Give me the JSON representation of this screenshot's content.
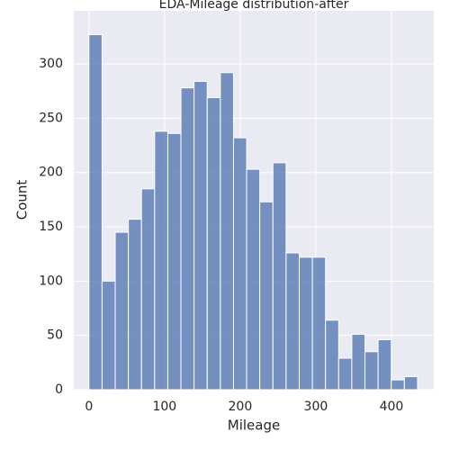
{
  "chart_data": {
    "type": "histogram",
    "title": "EDA-Mileage distribution-after",
    "x_label": "Mileage",
    "y_label": "Count",
    "bins": [
      0,
      17.38,
      34.76,
      52.14,
      69.52,
      86.9,
      104.28,
      121.66,
      139.04,
      156.42,
      173.8,
      191.18,
      208.56,
      225.94,
      243.32,
      260.7,
      278.08,
      295.46,
      312.84,
      330.22,
      347.6,
      364.98,
      382.36,
      399.74,
      417.12,
      434.5
    ],
    "values": [
      327,
      100,
      145,
      157,
      185,
      238,
      236,
      278,
      284,
      269,
      292,
      232,
      203,
      173,
      209,
      126,
      122,
      122,
      64,
      29,
      51,
      35,
      46,
      9,
      12
    ],
    "color": "#4c72b0",
    "xlim": [
      -20,
      456
    ],
    "ylim": [
      0,
      349
    ],
    "xticks": [
      0,
      100,
      200,
      300,
      400
    ],
    "yticks": [
      0,
      50,
      100,
      150,
      200,
      250,
      300
    ],
    "grid": true
  }
}
